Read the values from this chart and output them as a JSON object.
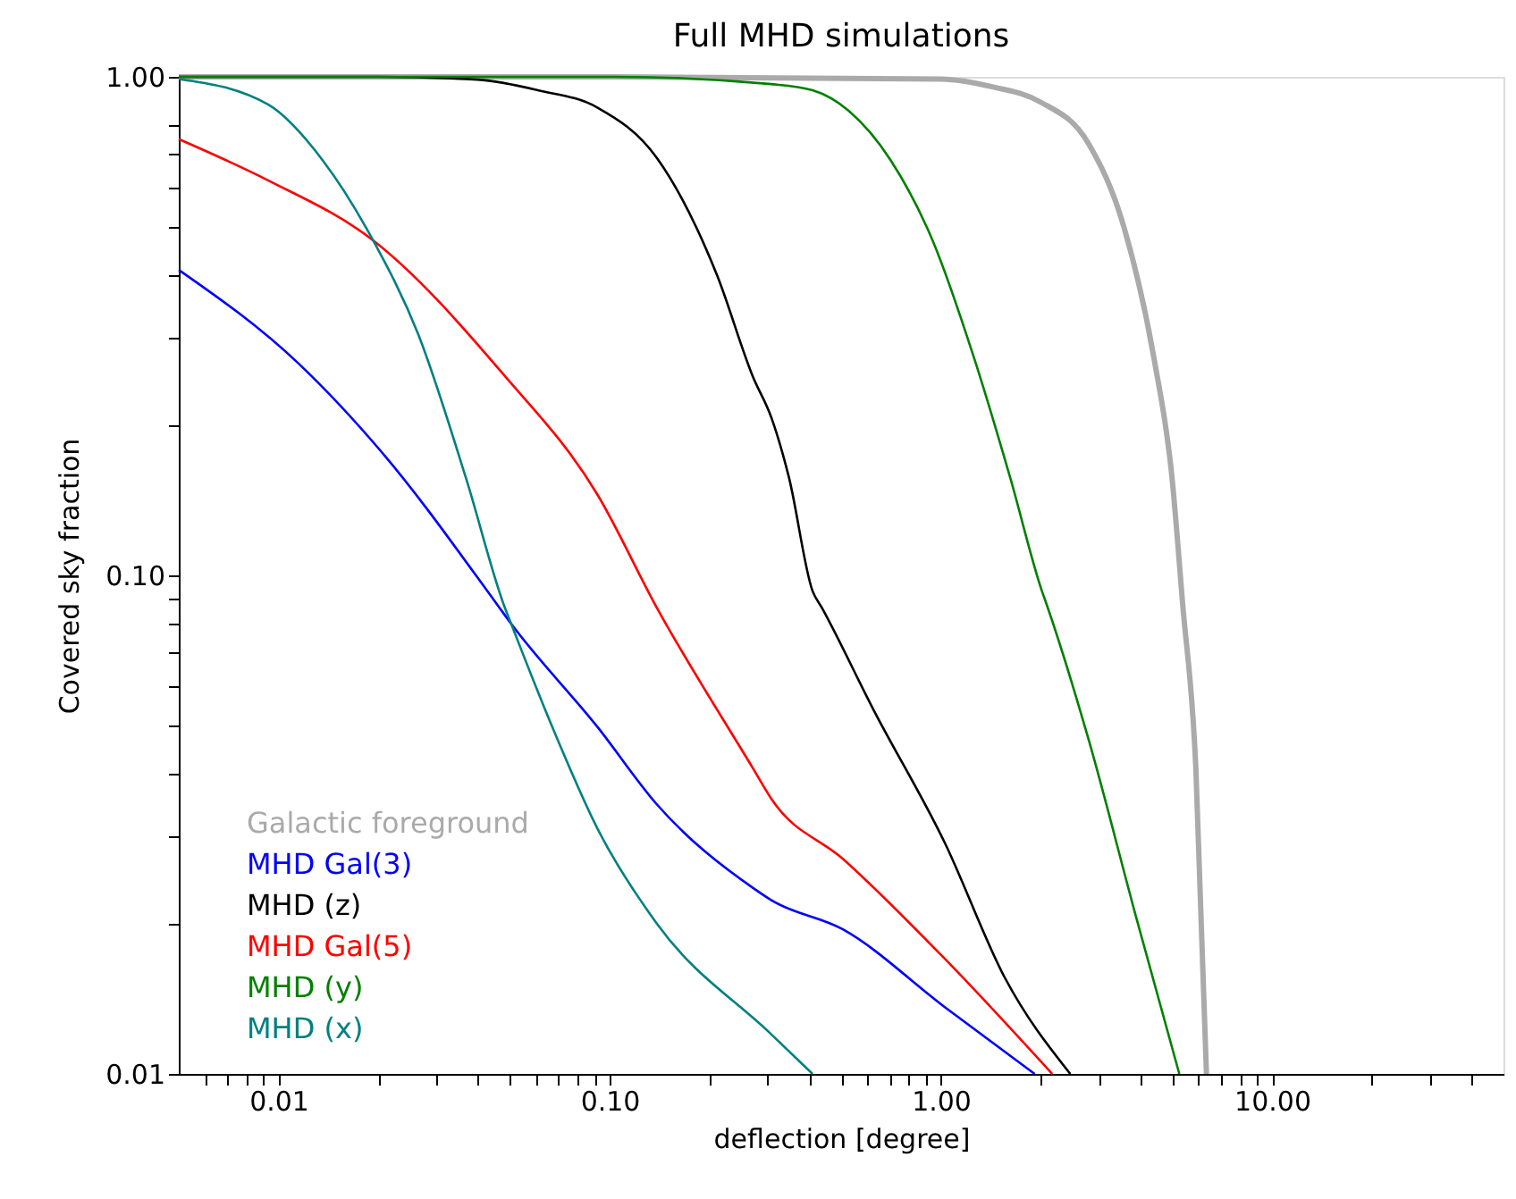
{
  "chart_data": {
    "type": "line",
    "title": "Full MHD simulations",
    "xlabel": "deflection [degree]",
    "ylabel": "Covered sky fraction",
    "log": "xy",
    "grid": false,
    "legend": "bottom left",
    "marker": "none",
    "line_style": "solid",
    "xlim": [
      0.005,
      50
    ],
    "ylim": [
      0.01,
      1.0
    ],
    "xticks": [
      {
        "value": 0.006,
        "label": null
      },
      {
        "value": 0.007,
        "label": null
      },
      {
        "value": 0.008,
        "label": null
      },
      {
        "value": 0.009,
        "label": null
      },
      0.01,
      {
        "value": 0.02,
        "label": null
      },
      {
        "value": 0.03,
        "label": null
      },
      {
        "value": 0.04,
        "label": null
      },
      {
        "value": 0.05,
        "label": null
      },
      {
        "value": 0.06,
        "label": null
      },
      {
        "value": 0.07,
        "label": null
      },
      {
        "value": 0.08,
        "label": null
      },
      {
        "value": 0.09,
        "label": null
      },
      {
        "value": 0.1,
        "label": "0.10"
      },
      {
        "value": 0.2,
        "label": null
      },
      {
        "value": 0.3,
        "label": null
      },
      {
        "value": 0.4,
        "label": null
      },
      {
        "value": 0.5,
        "label": null
      },
      {
        "value": 0.6,
        "label": null
      },
      {
        "value": 0.7,
        "label": null
      },
      {
        "value": 0.8,
        "label": null
      },
      {
        "value": 0.9,
        "label": null
      },
      {
        "value": 1,
        "label": "1.00"
      },
      {
        "value": 2,
        "label": null
      },
      {
        "value": 3,
        "label": null
      },
      {
        "value": 4,
        "label": null
      },
      {
        "value": 5,
        "label": null
      },
      {
        "value": 6,
        "label": null
      },
      {
        "value": 7,
        "label": null
      },
      {
        "value": 8,
        "label": null
      },
      {
        "value": 9,
        "label": null
      },
      {
        "value": 10,
        "label": "10.00"
      },
      {
        "value": 20,
        "label": null
      },
      {
        "value": 30,
        "label": null
      },
      {
        "value": 40,
        "label": null
      }
    ],
    "yticks": [
      0.01,
      {
        "value": 0.02,
        "label": null
      },
      {
        "value": 0.03,
        "label": null
      },
      {
        "value": 0.04,
        "label": null
      },
      {
        "value": 0.05,
        "label": null
      },
      {
        "value": 0.06,
        "label": null
      },
      {
        "value": 0.07,
        "label": null
      },
      {
        "value": 0.08,
        "label": null
      },
      {
        "value": 0.09,
        "label": null
      },
      {
        "value": 0.1,
        "label": "0.10"
      },
      {
        "value": 0.2,
        "label": null
      },
      {
        "value": 0.3,
        "label": null
      },
      {
        "value": 0.4,
        "label": null
      },
      {
        "value": 0.5,
        "label": null
      },
      {
        "value": 0.6,
        "label": null
      },
      {
        "value": 0.7,
        "label": null
      },
      {
        "value": 0.8,
        "label": null
      },
      {
        "value": 1,
        "label": "1.00"
      }
    ],
    "series": [
      {
        "name": "Galactic foreground",
        "color": "#aaaaaa",
        "x": [
          0.005,
          0.1,
          1.0,
          1.43,
          2.0,
          2.79,
          3.57,
          4.4,
          4.99,
          5.37,
          5.89,
          6.34
        ],
        "values": [
          1.0,
          1.0,
          0.99,
          0.955,
          0.89,
          0.735,
          0.5,
          0.273,
          0.157,
          0.088,
          0.041,
          0.01
        ]
      },
      {
        "name": "MHD Gal(3)",
        "color": "#0000ff",
        "x": [
          0.005,
          0.0115,
          0.0206,
          0.0454,
          0.0504,
          0.092,
          0.139,
          0.271,
          0.308,
          0.506,
          1.03,
          1.92
        ],
        "values": [
          0.41,
          0.266,
          0.176,
          0.088,
          0.08,
          0.0496,
          0.0347,
          0.0236,
          0.0223,
          0.0195,
          0.0136,
          0.01
        ]
      },
      {
        "name": "MHD (z)",
        "color": "#000000",
        "x": [
          0.005,
          0.02,
          0.04,
          0.0607,
          0.092,
          0.139,
          0.211,
          0.271,
          0.308,
          0.348,
          0.41,
          0.438,
          0.624,
          1.03,
          1.56,
          2.46
        ],
        "values": [
          1.0,
          1.0,
          0.987,
          0.94,
          0.867,
          0.687,
          0.4,
          0.25,
          0.207,
          0.157,
          0.093,
          0.086,
          0.054,
          0.029,
          0.0156,
          0.01
        ]
      },
      {
        "name": "MHD Gal(5)",
        "color": "#ff0000",
        "x": [
          0.005,
          0.0093,
          0.0193,
          0.0473,
          0.092,
          0.139,
          0.271,
          0.308,
          0.506,
          1.03,
          2.17
        ],
        "values": [
          0.75,
          0.62,
          0.47,
          0.255,
          0.145,
          0.086,
          0.041,
          0.0356,
          0.027,
          0.017,
          0.01
        ]
      },
      {
        "name": "MHD (y)",
        "color": "#008000",
        "x": [
          0.005,
          0.104,
          0.308,
          0.41,
          0.527,
          0.706,
          0.944,
          1.26,
          1.62,
          2.02,
          2.08,
          2.79,
          3.89,
          5.25
        ],
        "values": [
          1.0,
          1.0,
          0.967,
          0.94,
          0.855,
          0.68,
          0.47,
          0.273,
          0.157,
          0.093,
          0.088,
          0.047,
          0.0206,
          0.01
        ]
      },
      {
        "name": "MHD (x)",
        "color": "#008080",
        "x": [
          0.005,
          0.0093,
          0.0136,
          0.0193,
          0.0264,
          0.0368,
          0.0483,
          0.0504,
          0.066,
          0.092,
          0.139,
          0.308,
          0.41
        ],
        "values": [
          0.99,
          0.88,
          0.68,
          0.47,
          0.305,
          0.157,
          0.086,
          0.08,
          0.051,
          0.031,
          0.02,
          0.012,
          0.01
        ]
      }
    ]
  }
}
